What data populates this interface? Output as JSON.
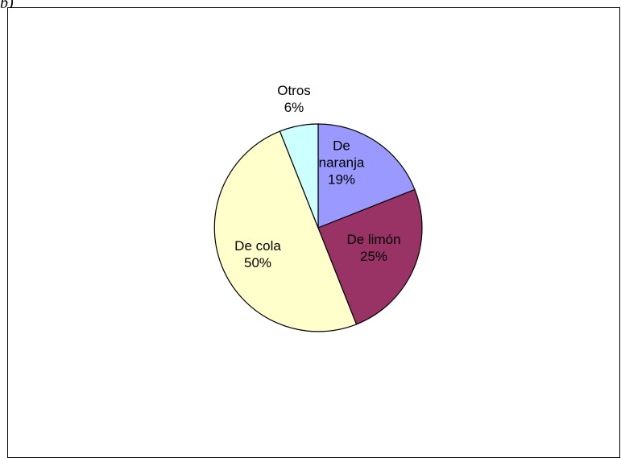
{
  "corner_label": "b)",
  "chart_data": {
    "type": "pie",
    "title": "",
    "slices": [
      {
        "name": "De naranja",
        "value": 19,
        "label_lines": [
          "De",
          "naranja",
          "19%"
        ],
        "color": "#9999ff"
      },
      {
        "name": "De limón",
        "value": 25,
        "label_lines": [
          "De limón",
          "25%"
        ],
        "color": "#993366"
      },
      {
        "name": "De cola",
        "value": 50,
        "label_lines": [
          "De cola",
          "50%"
        ],
        "color": "#ffffcc"
      },
      {
        "name": "Otros",
        "value": 6,
        "label_lines": [
          "Otros",
          "6%"
        ],
        "color": "#ccffff"
      }
    ]
  }
}
